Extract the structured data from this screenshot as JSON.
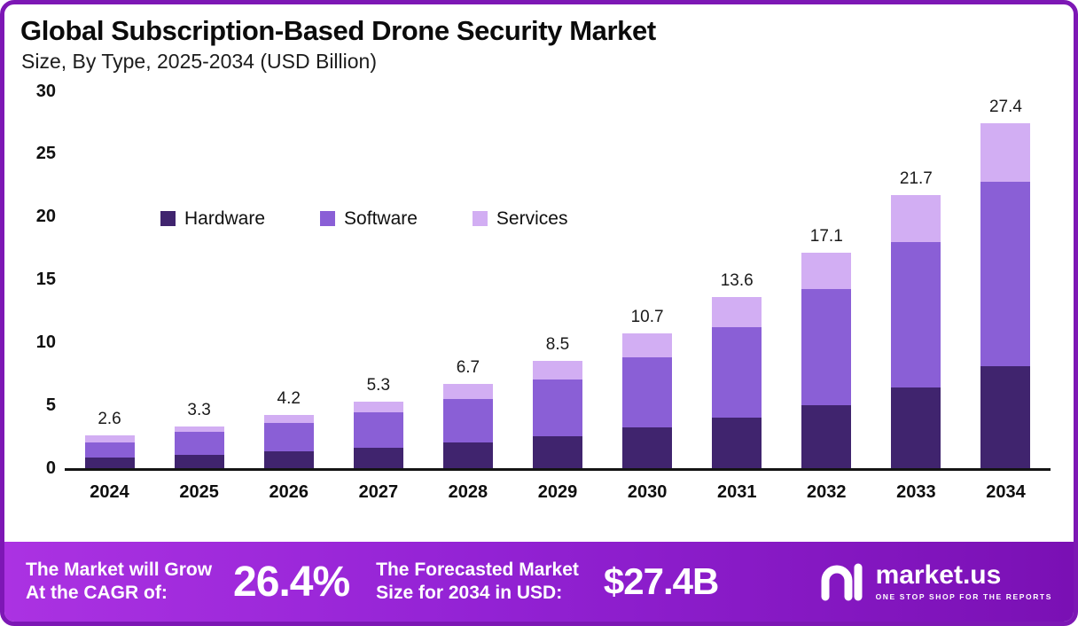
{
  "header": {
    "title": "Global Subscription-Based Drone Security Market",
    "subtitle": "Size, By Type, 2025-2034 (USD Billion)"
  },
  "chart_data": {
    "type": "bar",
    "stacked": true,
    "title": "Global Subscription-Based Drone Security Market Size, By Type, 2025-2034 (USD Billion)",
    "categories": [
      "2024",
      "2025",
      "2026",
      "2027",
      "2028",
      "2029",
      "2030",
      "2031",
      "2032",
      "2033",
      "2034"
    ],
    "series": [
      {
        "name": "Hardware",
        "color": "#40246e",
        "values": [
          0.8,
          1.0,
          1.3,
          1.6,
          2.0,
          2.5,
          3.2,
          4.0,
          5.0,
          6.4,
          8.1
        ]
      },
      {
        "name": "Software",
        "color": "#8a5fd6",
        "values": [
          1.2,
          1.9,
          2.3,
          2.8,
          3.5,
          4.5,
          5.6,
          7.2,
          9.2,
          11.6,
          14.7
        ]
      },
      {
        "name": "Services",
        "color": "#d2aef3",
        "values": [
          0.6,
          0.4,
          0.6,
          0.9,
          1.2,
          1.5,
          1.9,
          2.4,
          2.9,
          3.7,
          4.6
        ]
      }
    ],
    "totals": [
      "2.6",
      "3.3",
      "4.2",
      "5.3",
      "6.7",
      "8.5",
      "10.7",
      "13.6",
      "17.1",
      "21.7",
      "27.4"
    ],
    "xlabel": "",
    "ylabel": "",
    "ylim": [
      0,
      30
    ],
    "yticks": [
      0,
      5,
      10,
      15,
      20,
      25,
      30
    ],
    "grid": false,
    "legend_position": "inside-top-left"
  },
  "footer": {
    "cagr_label_line1": "The Market will Grow",
    "cagr_label_line2": "At the CAGR of:",
    "cagr_value": "26.4%",
    "forecast_label_line1": "The Forecasted Market",
    "forecast_label_line2": "Size for 2034 in USD:",
    "forecast_value": "$27.4B",
    "brand": "market.us",
    "brand_tagline": "ONE STOP SHOP FOR THE REPORTS"
  }
}
